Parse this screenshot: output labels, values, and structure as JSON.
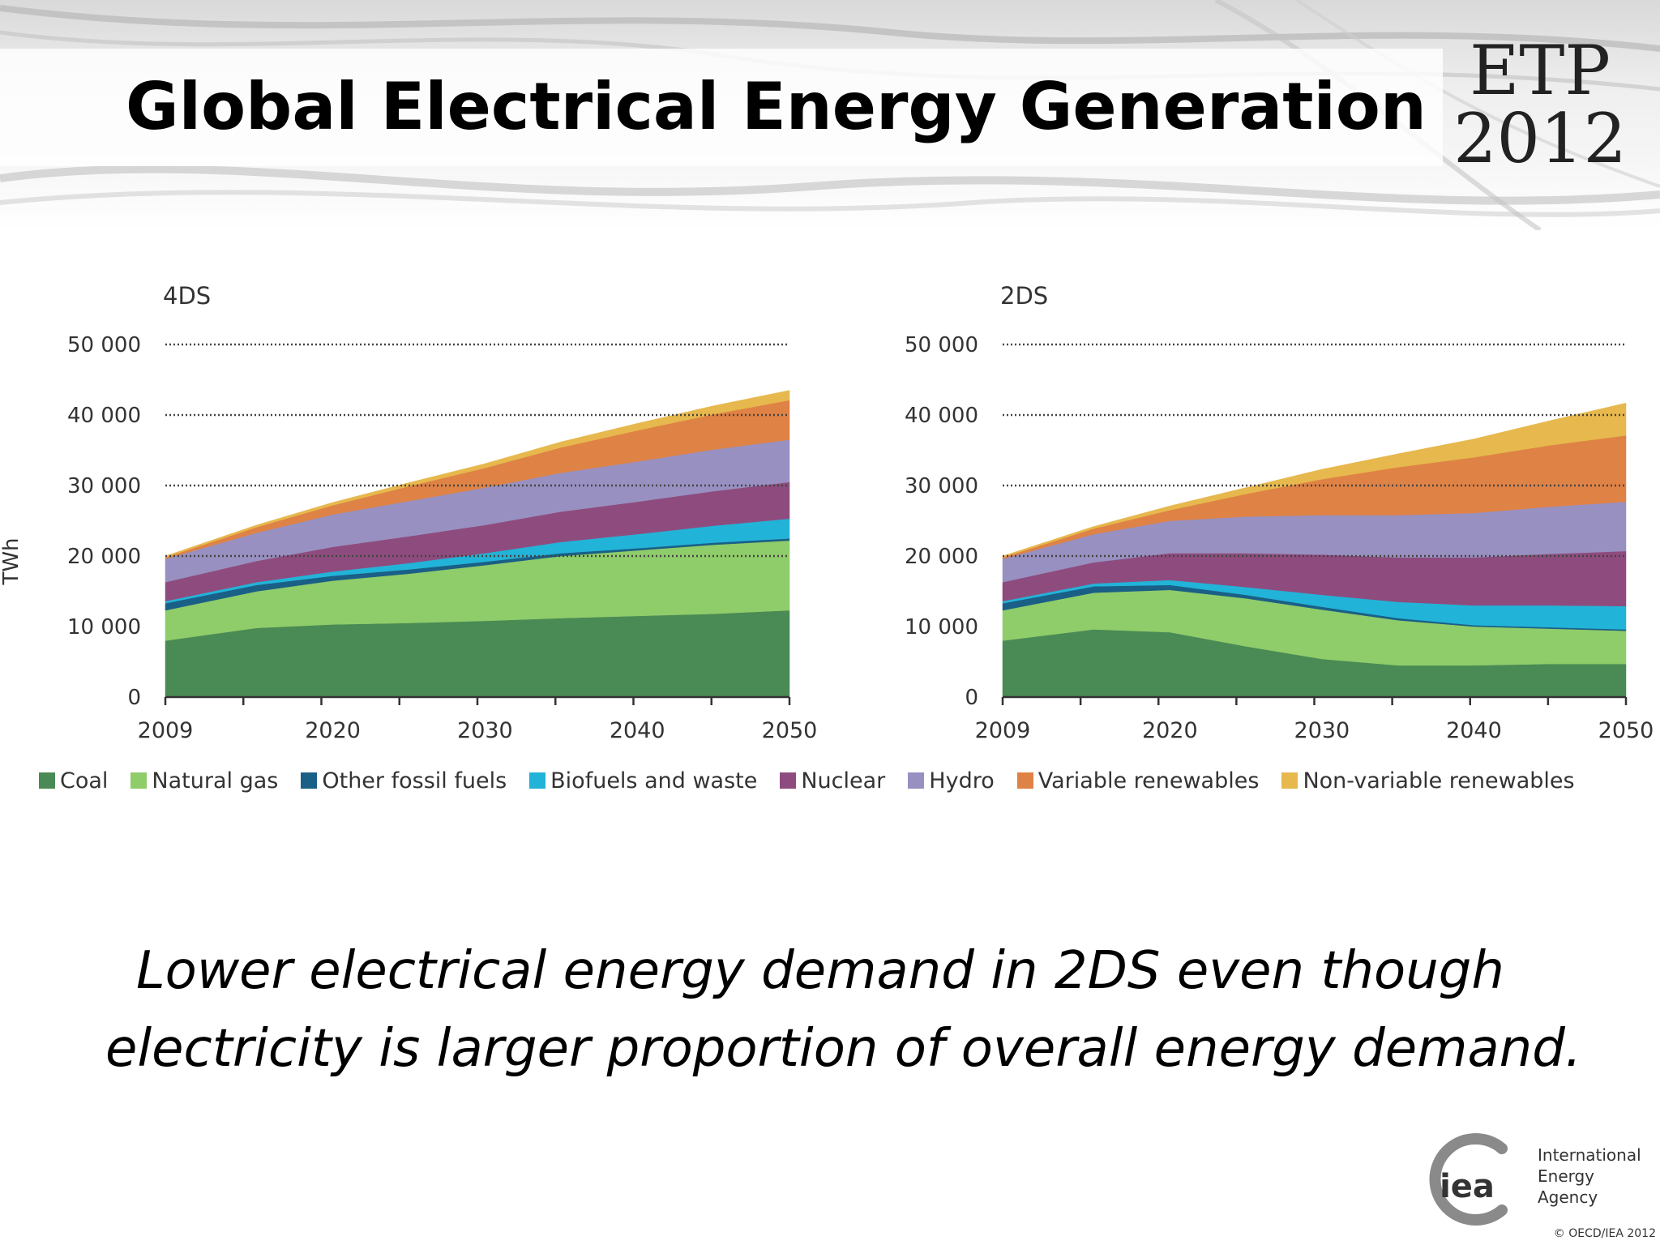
{
  "title": "Global Electrical Energy Generation",
  "badge": {
    "line1": "ETP",
    "line2": "2012"
  },
  "caption": {
    "line1": "Lower electrical energy demand in 2DS even though",
    "line2": "electricity is larger proportion of overall energy demand."
  },
  "organization": {
    "logo_text": "iea",
    "line1": "International",
    "line2": "Energy Agency"
  },
  "copyright": "© OECD/IEA 2012",
  "legend": [
    {
      "label": "Coal",
      "color": "#4a8a54"
    },
    {
      "label": "Natural gas",
      "color": "#8fcc6a"
    },
    {
      "label": "Other fossil fuels",
      "color": "#1a5f86"
    },
    {
      "label": "Biofuels and waste",
      "color": "#22b3d8"
    },
    {
      "label": "Nuclear",
      "color": "#8e4c7e"
    },
    {
      "label": "Hydro",
      "color": "#9890c0"
    },
    {
      "label": "Variable renewables",
      "color": "#df8245"
    },
    {
      "label": "Non-variable renewables",
      "color": "#e6b84d"
    }
  ],
  "chart_data": [
    {
      "type": "area",
      "stacked": true,
      "title": "4DS",
      "ylabel": "TWh",
      "xlabel": "",
      "ylim": [
        0,
        50000
      ],
      "yticks": [
        "0",
        "10 000",
        "20 000",
        "30 000",
        "40 000",
        "50 000"
      ],
      "ytick_values": [
        0,
        10000,
        20000,
        30000,
        40000,
        50000
      ],
      "xlim": [
        2009,
        2050
      ],
      "xticks": [
        "2009",
        "2020",
        "2030",
        "2040",
        "2050"
      ],
      "xtick_values": [
        2009,
        2020,
        2030,
        2040,
        2050
      ],
      "x": [
        2009,
        2015,
        2020,
        2025,
        2030,
        2035,
        2040,
        2045,
        2050
      ],
      "grid": "dotted horizontal lines at 20 000, 30 000, 40 000, 50 000",
      "series": [
        {
          "name": "Coal",
          "values": [
            8000,
            9800,
            10300,
            10500,
            10800,
            11200,
            11500,
            11800,
            12300
          ]
        },
        {
          "name": "Natural gas",
          "values": [
            4300,
            5200,
            6200,
            7000,
            7900,
            8800,
            9300,
            9800,
            9900
          ]
        },
        {
          "name": "Other fossil fuels",
          "values": [
            1000,
            900,
            700,
            600,
            500,
            400,
            300,
            300,
            300
          ]
        },
        {
          "name": "Biofuels and waste",
          "values": [
            300,
            400,
            600,
            900,
            1200,
            1600,
            2000,
            2400,
            2800
          ]
        },
        {
          "name": "Nuclear",
          "values": [
            2700,
            3000,
            3500,
            3800,
            4000,
            4300,
            4600,
            4900,
            5200
          ]
        },
        {
          "name": "Hydro",
          "values": [
            3300,
            4000,
            4600,
            5000,
            5300,
            5500,
            5700,
            5900,
            6000
          ]
        },
        {
          "name": "Variable renewables",
          "values": [
            200,
            800,
            1300,
            2100,
            2800,
            3600,
            4400,
            5000,
            5600
          ]
        },
        {
          "name": "Non-variable renewables",
          "values": [
            200,
            300,
            400,
            500,
            600,
            800,
            1000,
            1200,
            1400
          ]
        }
      ]
    },
    {
      "type": "area",
      "stacked": true,
      "title": "2DS",
      "ylabel": "",
      "xlabel": "",
      "ylim": [
        0,
        50000
      ],
      "yticks": [
        "0",
        "10 000",
        "20 000",
        "30 000",
        "40 000",
        "50 000"
      ],
      "ytick_values": [
        0,
        10000,
        20000,
        30000,
        40000,
        50000
      ],
      "xlim": [
        2009,
        2050
      ],
      "xticks": [
        "2009",
        "2020",
        "2030",
        "2040",
        "2050"
      ],
      "xtick_values": [
        2009,
        2020,
        2030,
        2040,
        2050
      ],
      "x": [
        2009,
        2015,
        2020,
        2025,
        2030,
        2035,
        2040,
        2045,
        2050
      ],
      "grid": "dotted horizontal lines at 20 000, 30 000, 40 000, 50 000",
      "series": [
        {
          "name": "Coal",
          "values": [
            8000,
            9600,
            9200,
            7200,
            5400,
            4500,
            4500,
            4700,
            4700
          ]
        },
        {
          "name": "Natural gas",
          "values": [
            4300,
            5200,
            6000,
            6800,
            7000,
            6400,
            5500,
            5000,
            4700
          ]
        },
        {
          "name": "Other fossil fuels",
          "values": [
            1000,
            900,
            700,
            500,
            400,
            300,
            200,
            200,
            200
          ]
        },
        {
          "name": "Biofuels and waste",
          "values": [
            300,
            400,
            700,
            1100,
            1700,
            2300,
            2800,
            3100,
            3300
          ]
        },
        {
          "name": "Nuclear",
          "values": [
            2700,
            3000,
            3800,
            4800,
            5700,
            6300,
            6800,
            7300,
            7800
          ]
        },
        {
          "name": "Hydro",
          "values": [
            3300,
            4000,
            4600,
            5200,
            5600,
            6000,
            6300,
            6700,
            7000
          ]
        },
        {
          "name": "Variable renewables",
          "values": [
            200,
            800,
            1500,
            3200,
            5100,
            6800,
            7900,
            8700,
            9400
          ]
        },
        {
          "name": "Non-variable renewables",
          "values": [
            200,
            300,
            600,
            900,
            1400,
            1900,
            2600,
            3500,
            4600
          ]
        }
      ]
    }
  ]
}
